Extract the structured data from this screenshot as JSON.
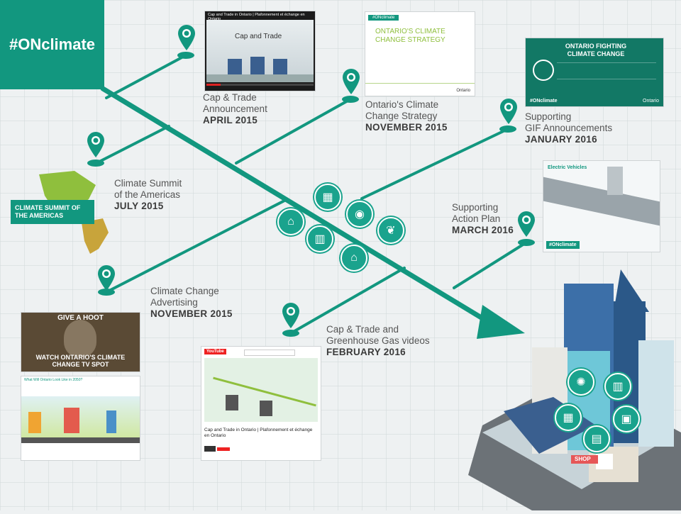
{
  "brand": {
    "hashtag": "#ONclimate"
  },
  "timeline": [
    {
      "title_line1": "Cap & Trade",
      "title_line2": "Announcement",
      "date": "APRIL 2015"
    },
    {
      "title_line1": "Ontario's Climate",
      "title_line2": "Change Strategy",
      "date": "NOVEMBER 2015"
    },
    {
      "title_line1": "Supporting",
      "title_line2": "GIF Announcements",
      "date": "JANUARY 2016"
    },
    {
      "title_line1": "Climate Summit",
      "title_line2": "of the Americas",
      "date": "JULY 2015"
    },
    {
      "title_line1": "Supporting",
      "title_line2": "Action Plan",
      "date": "MARCH 2016"
    },
    {
      "title_line1": "Climate Change",
      "title_line2": "Advertising",
      "date": "NOVEMBER 2015"
    },
    {
      "title_line1": "Cap & Trade and",
      "title_line2": "Greenhouse Gas videos",
      "date": "FEBRUARY 2016"
    }
  ],
  "thumbs": {
    "video1_title": "Cap and Trade in Ontario | Plafonnement et échange en Ontario",
    "video1_heading": "Cap and Trade",
    "strategy_tag": "#ONclimate",
    "strategy_title": "ONTARIO'S CLIMATE CHANGE STRATEGY",
    "strategy_brand": "Ontario",
    "gif_title": "ONTARIO FIGHTING CLIMATE CHANGE",
    "gif_tag": "#ONclimate",
    "gif_brand": "Ontario",
    "summit_title": "CLIMATE SUMMIT OF THE AMERICAS",
    "action_heading": "Electric Vehicles",
    "action_tag": "#ONclimate",
    "ad_top": "GIVE A HOOT",
    "ad_bottom": "WATCH ONTARIO'S CLIMATE CHANGE TV SPOT",
    "ad_info_heading": "What Will Ontario Look Like in 2050?",
    "yt_logo": "YouTube",
    "yt_title": "Cap and Trade in Ontario | Plafonnement et échange en Ontario",
    "shop_sign": "SHOP"
  }
}
